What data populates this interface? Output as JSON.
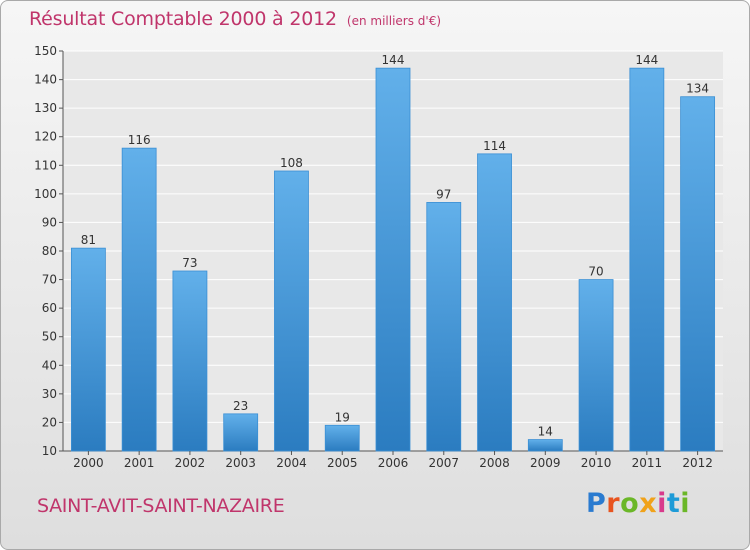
{
  "header": {
    "title": "Résultat Comptable 2000 à 2012",
    "subtitle": "(en milliers d'€)"
  },
  "footer": {
    "place": "SAINT-AVIT-SAINT-NAZAIRE",
    "logo": "Proxiti"
  },
  "colors": {
    "accent": "#c0356b",
    "bar_light": "#62b0ea",
    "bar_dark": "#2b7cc0",
    "logo_letters": [
      "#2a7bd0",
      "#e8541f",
      "#6bb728",
      "#f0a21a",
      "#d83a8c",
      "#1e9bd7",
      "#6bb728"
    ]
  },
  "chart_data": {
    "type": "bar",
    "title": "Résultat Comptable 2000 à 2012",
    "subtitle": "(en milliers d'€)",
    "categories": [
      "2000",
      "2001",
      "2002",
      "2003",
      "2004",
      "2005",
      "2006",
      "2007",
      "2008",
      "2009",
      "2010",
      "2011",
      "2012"
    ],
    "values": [
      81,
      116,
      73,
      23,
      108,
      19,
      144,
      97,
      114,
      14,
      70,
      144,
      134
    ],
    "ylim": [
      10,
      150
    ],
    "yticks": [
      10,
      20,
      30,
      40,
      50,
      60,
      70,
      80,
      90,
      100,
      110,
      120,
      130,
      140,
      150
    ],
    "grid": true,
    "data_labels": true
  }
}
